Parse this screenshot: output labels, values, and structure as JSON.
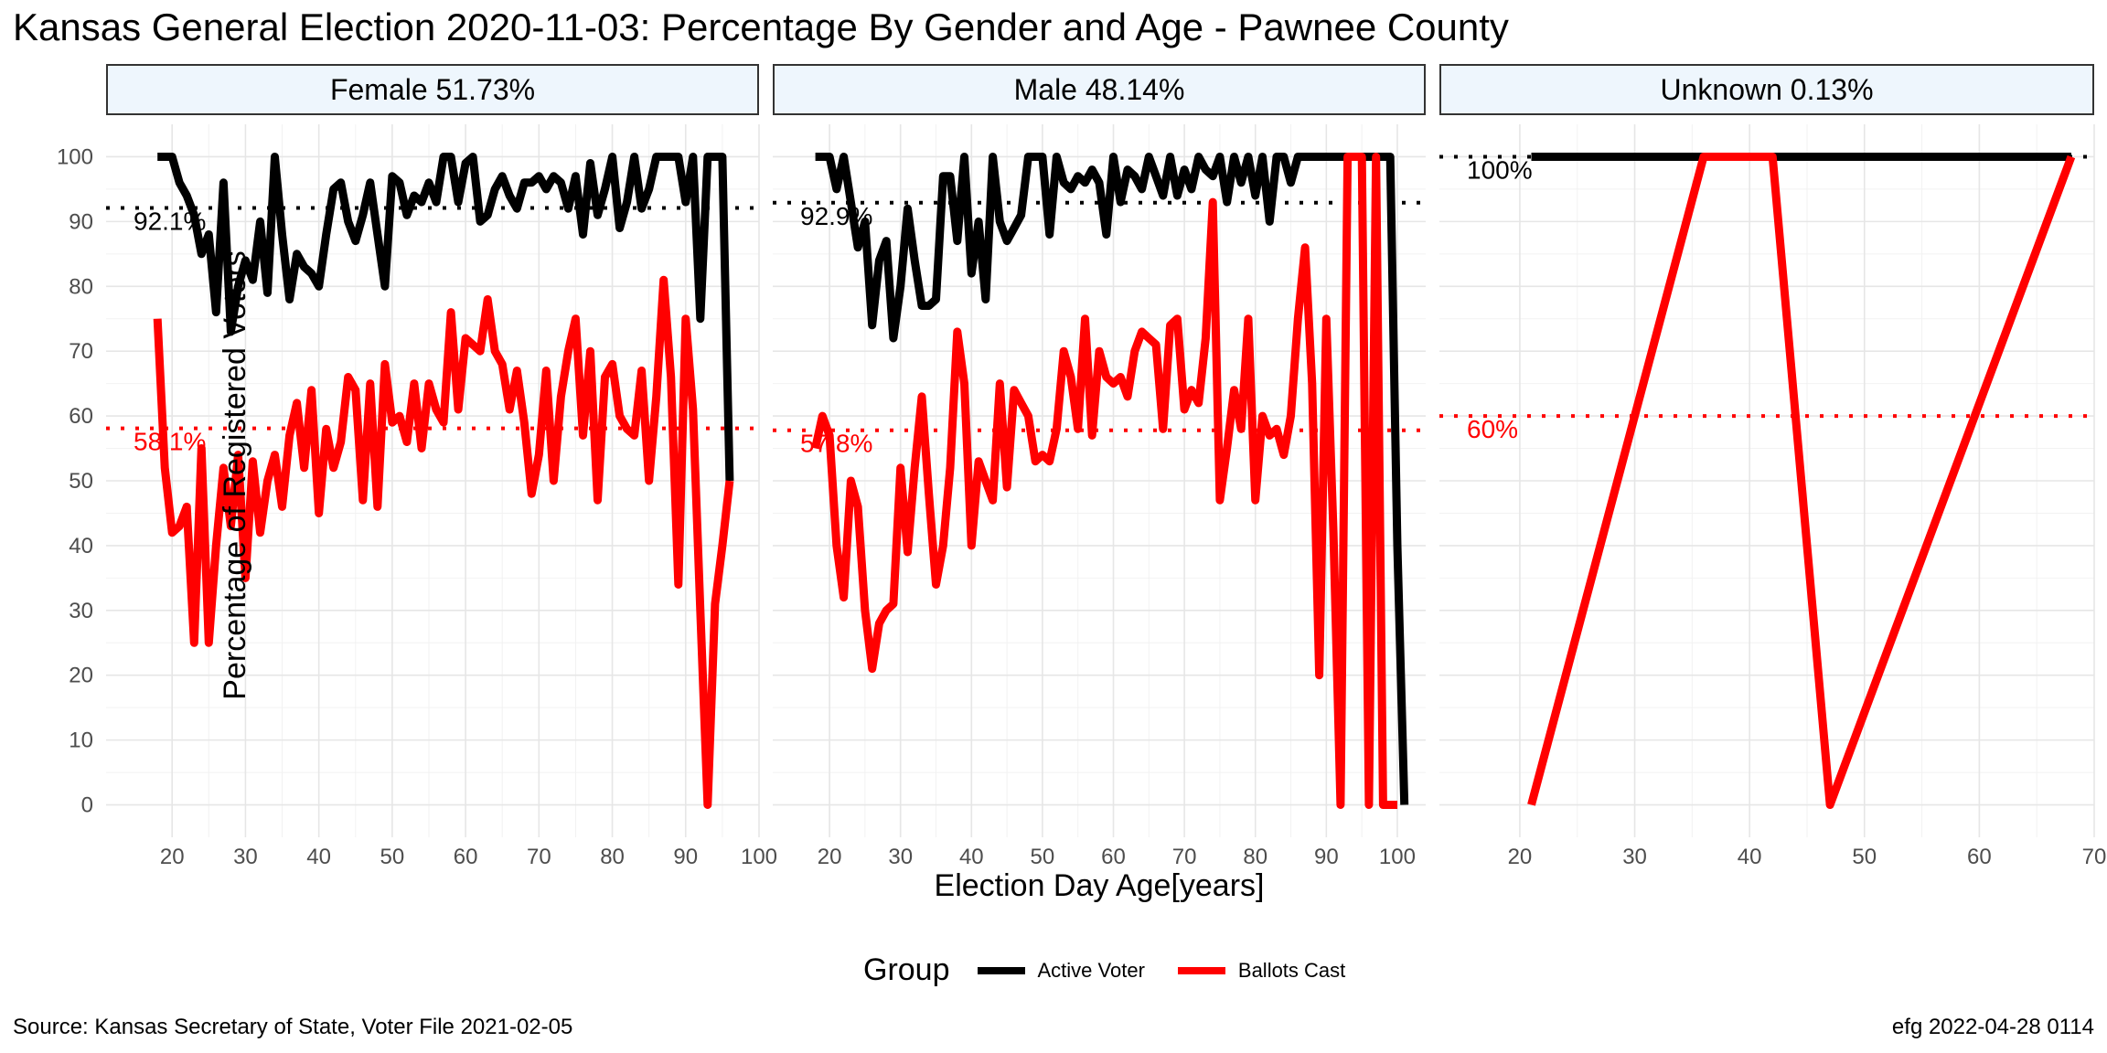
{
  "title": "Kansas General Election 2020-11-03:  Percentage By Gender and Age - Pawnee County",
  "ylabel": "Percentage of Registered Voters",
  "xlabel": "Election Day Age[years]",
  "legend": {
    "title": "Group",
    "items": [
      {
        "label": "Active Voter",
        "color": "#000000"
      },
      {
        "label": "Ballots Cast",
        "color": "#ff0000"
      }
    ]
  },
  "source": "Source:  Kansas Secretary of State, Voter File  2021-02-05",
  "stamp": "efg 2022-04-28 0114",
  "chart_data": [
    {
      "type": "line",
      "panel": "Female 51.73%",
      "xlim": [
        11,
        100
      ],
      "ylim": [
        -5,
        105
      ],
      "xticks": [
        20,
        30,
        40,
        50,
        60,
        70,
        80,
        90,
        100
      ],
      "yticks": [
        0,
        10,
        20,
        30,
        40,
        50,
        60,
        70,
        80,
        90,
        100
      ],
      "series": [
        {
          "name": "Active Voter",
          "color": "#000000",
          "x": [
            18,
            19,
            20,
            21,
            22,
            23,
            24,
            25,
            26,
            27,
            28,
            29,
            30,
            31,
            32,
            33,
            34,
            35,
            36,
            37,
            38,
            39,
            40,
            41,
            42,
            43,
            44,
            45,
            46,
            47,
            48,
            49,
            50,
            51,
            52,
            53,
            54,
            55,
            56,
            57,
            58,
            59,
            60,
            61,
            62,
            63,
            64,
            65,
            66,
            67,
            68,
            69,
            70,
            71,
            72,
            73,
            74,
            75,
            76,
            77,
            78,
            79,
            80,
            81,
            82,
            83,
            84,
            85,
            86,
            87,
            88,
            89,
            90,
            91,
            92,
            93,
            94,
            95,
            96
          ],
          "y": [
            100,
            100,
            100,
            96,
            94,
            91,
            85,
            88,
            76,
            96,
            73,
            80,
            84,
            81,
            90,
            79,
            100,
            88,
            78,
            85,
            83,
            82,
            80,
            88,
            95,
            96,
            90,
            87,
            91,
            96,
            88,
            80,
            97,
            96,
            91,
            94,
            93,
            96,
            93,
            100,
            100,
            93,
            99,
            100,
            90,
            91,
            95,
            97,
            94,
            92,
            96,
            96,
            97,
            95,
            97,
            96,
            92,
            97,
            88,
            99,
            91,
            95,
            100,
            89,
            93,
            100,
            92,
            95,
            100,
            100,
            100,
            100,
            93,
            100,
            75,
            100,
            100,
            100,
            50
          ]
        },
        {
          "name": "Ballots Cast",
          "color": "#ff0000",
          "x": [
            18,
            19,
            20,
            21,
            22,
            23,
            24,
            25,
            26,
            27,
            28,
            29,
            30,
            31,
            32,
            33,
            34,
            35,
            36,
            37,
            38,
            39,
            40,
            41,
            42,
            43,
            44,
            45,
            46,
            47,
            48,
            49,
            50,
            51,
            52,
            53,
            54,
            55,
            56,
            57,
            58,
            59,
            60,
            61,
            62,
            63,
            64,
            65,
            66,
            67,
            68,
            69,
            70,
            71,
            72,
            73,
            74,
            75,
            76,
            77,
            78,
            79,
            80,
            81,
            82,
            83,
            84,
            85,
            86,
            87,
            88,
            89,
            90,
            91,
            92,
            93,
            94,
            95,
            96
          ],
          "y": [
            75,
            52,
            42,
            43,
            46,
            25,
            55,
            25,
            40,
            52,
            43,
            54,
            35,
            53,
            42,
            50,
            54,
            46,
            57,
            62,
            52,
            64,
            45,
            58,
            52,
            56,
            66,
            64,
            47,
            65,
            46,
            68,
            59,
            60,
            56,
            65,
            55,
            65,
            61,
            59,
            76,
            61,
            72,
            71,
            70,
            78,
            70,
            68,
            61,
            67,
            59,
            48,
            54,
            67,
            50,
            63,
            70,
            75,
            57,
            70,
            47,
            66,
            68,
            60,
            58,
            57,
            67,
            50,
            63,
            81,
            66,
            34,
            75,
            61,
            30,
            0,
            31,
            40,
            50
          ]
        }
      ],
      "hlines": [
        {
          "y": 92.1,
          "label": "92.1%",
          "color": "#000000"
        },
        {
          "y": 58.1,
          "label": "58.1%",
          "color": "#ff0000"
        }
      ]
    },
    {
      "type": "line",
      "panel": "Male 48.14%",
      "xlim": [
        12,
        104
      ],
      "ylim": [
        -5,
        105
      ],
      "xticks": [
        20,
        30,
        40,
        50,
        60,
        70,
        80,
        90,
        100
      ],
      "yticks": [
        0,
        10,
        20,
        30,
        40,
        50,
        60,
        70,
        80,
        90,
        100
      ],
      "series": [
        {
          "name": "Active Voter",
          "color": "#000000",
          "x": [
            18,
            19,
            20,
            21,
            22,
            23,
            24,
            25,
            26,
            27,
            28,
            29,
            30,
            31,
            32,
            33,
            34,
            35,
            36,
            37,
            38,
            39,
            40,
            41,
            42,
            43,
            44,
            45,
            46,
            47,
            48,
            49,
            50,
            51,
            52,
            53,
            54,
            55,
            56,
            57,
            58,
            59,
            60,
            61,
            62,
            63,
            64,
            65,
            66,
            67,
            68,
            69,
            70,
            71,
            72,
            73,
            74,
            75,
            76,
            77,
            78,
            79,
            80,
            81,
            82,
            83,
            84,
            85,
            86,
            87,
            88,
            89,
            90,
            91,
            92,
            93,
            94,
            95,
            96,
            97,
            98,
            99,
            100,
            101
          ],
          "y": [
            100,
            100,
            100,
            95,
            100,
            93,
            86,
            90,
            74,
            84,
            87,
            72,
            80,
            92,
            84,
            77,
            77,
            78,
            97,
            97,
            87,
            100,
            82,
            90,
            78,
            100,
            90,
            87,
            89,
            91,
            100,
            100,
            100,
            88,
            100,
            96,
            95,
            97,
            96,
            98,
            96,
            88,
            100,
            93,
            98,
            97,
            95,
            100,
            97,
            94,
            100,
            94,
            98,
            95,
            100,
            98,
            97,
            100,
            93,
            100,
            96,
            100,
            94,
            100,
            90,
            100,
            100,
            96,
            100,
            100,
            100,
            100,
            100,
            100,
            100,
            100,
            100,
            100,
            100,
            100,
            100,
            100,
            40,
            0
          ]
        },
        {
          "name": "Ballots Cast",
          "color": "#ff0000",
          "x": [
            18,
            19,
            20,
            21,
            22,
            23,
            24,
            25,
            26,
            27,
            28,
            29,
            30,
            31,
            32,
            33,
            34,
            35,
            36,
            37,
            38,
            39,
            40,
            41,
            42,
            43,
            44,
            45,
            46,
            47,
            48,
            49,
            50,
            51,
            52,
            53,
            54,
            55,
            56,
            57,
            58,
            59,
            60,
            61,
            62,
            63,
            64,
            65,
            66,
            67,
            68,
            69,
            70,
            71,
            72,
            73,
            74,
            75,
            76,
            77,
            78,
            79,
            80,
            81,
            82,
            83,
            84,
            85,
            86,
            87,
            88,
            89,
            90,
            91,
            92,
            93,
            94,
            95,
            96,
            97,
            98,
            99,
            100
          ],
          "y": [
            55,
            60,
            57,
            40,
            32,
            50,
            46,
            30,
            21,
            28,
            30,
            31,
            52,
            39,
            52,
            63,
            48,
            34,
            40,
            52,
            73,
            65,
            40,
            53,
            50,
            47,
            65,
            49,
            64,
            62,
            60,
            53,
            54,
            53,
            58,
            70,
            66,
            58,
            75,
            57,
            70,
            66,
            65,
            66,
            63,
            70,
            73,
            72,
            71,
            58,
            74,
            75,
            61,
            64,
            62,
            72,
            93,
            47,
            55,
            64,
            58,
            75,
            47,
            60,
            57,
            58,
            54,
            60,
            75,
            86,
            65,
            20,
            75,
            42,
            0,
            100,
            100,
            100,
            0,
            100,
            0,
            0,
            0
          ]
        }
      ],
      "hlines": [
        {
          "y": 92.9,
          "label": "92.9%",
          "color": "#000000"
        },
        {
          "y": 57.8,
          "label": "57.8%",
          "color": "#ff0000"
        }
      ]
    },
    {
      "type": "line",
      "panel": "Unknown 0.13%",
      "xlim": [
        13,
        70
      ],
      "ylim": [
        -5,
        105
      ],
      "xticks": [
        20,
        30,
        40,
        50,
        60,
        70
      ],
      "yticks": [
        0,
        10,
        20,
        30,
        40,
        50,
        60,
        70,
        80,
        90,
        100
      ],
      "series": [
        {
          "name": "Active Voter",
          "color": "#000000",
          "x": [
            21,
            36,
            42,
            47,
            68
          ],
          "y": [
            100,
            100,
            100,
            100,
            100
          ]
        },
        {
          "name": "Ballots Cast",
          "color": "#ff0000",
          "x": [
            21,
            36,
            42,
            47,
            68
          ],
          "y": [
            0,
            100,
            100,
            0,
            100
          ]
        }
      ],
      "hlines": [
        {
          "y": 100,
          "label": "100%",
          "color": "#000000"
        },
        {
          "y": 60,
          "label": "60%",
          "color": "#ff0000"
        }
      ]
    }
  ]
}
